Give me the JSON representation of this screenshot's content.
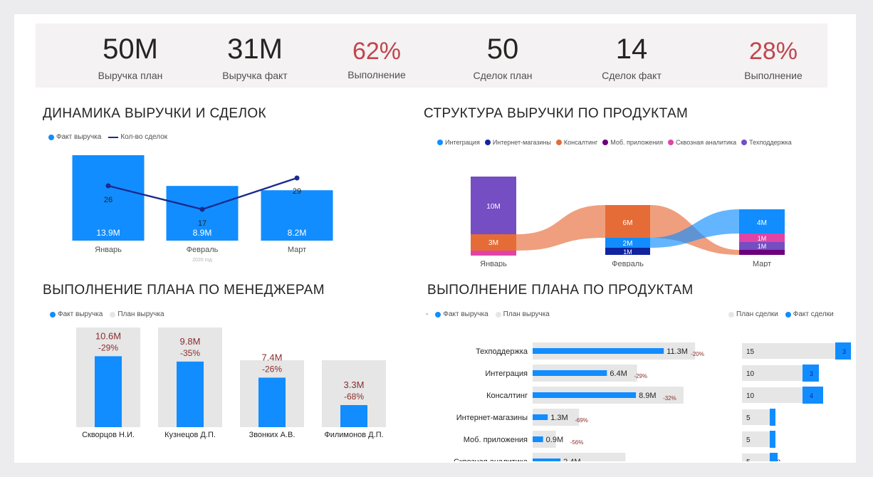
{
  "kpis": [
    {
      "value": "50M",
      "label": "Выручка план",
      "highlight": false
    },
    {
      "value": "31M",
      "label": "Выручка факт",
      "highlight": false
    },
    {
      "value": "62%",
      "label": "Выполнение",
      "highlight": true
    },
    {
      "value": "50",
      "label": "Сделок план",
      "highlight": false
    },
    {
      "value": "14",
      "label": "Сделок факт",
      "highlight": false
    },
    {
      "value": "28%",
      "label": "Выполнение",
      "highlight": true
    }
  ],
  "colors": {
    "blue": "#118dff",
    "navy": "#1b2b8f",
    "orange": "#e66c37",
    "purple": "#744ec2",
    "pink": "#e044a7",
    "darkblue": "#12239e",
    "darkpurple": "#6b007b",
    "red": "#c0454e",
    "grey": "#e6e6e6",
    "dark_red_text": "#8b2d2d"
  },
  "revenue_dynamics": {
    "title": "ДИНАМИКА ВЫРУЧКИ И СДЕЛОК",
    "legend": [
      "Факт выручка",
      "Кол-во сделок"
    ],
    "x_axis_caption": "2020 год",
    "chart_data": {
      "type": "bar",
      "categories": [
        "Январь",
        "Февраль",
        "Март"
      ],
      "series": [
        {
          "name": "Факт выручка",
          "values": [
            13.9,
            8.9,
            8.2
          ],
          "labels": [
            "13.9M",
            "8.9M",
            "8.2M"
          ]
        },
        {
          "name": "Кол-во сделок",
          "values": [
            26,
            17,
            29
          ]
        }
      ]
    }
  },
  "product_structure": {
    "title": "СТРУКТУРА ВЫРУЧКИ ПО ПРОДУКТАМ",
    "legend": [
      {
        "name": "Интеграция",
        "color": "#118dff"
      },
      {
        "name": "Интернет-магазины",
        "color": "#12239e"
      },
      {
        "name": "Консалтинг",
        "color": "#e66c37"
      },
      {
        "name": "Моб. приложения",
        "color": "#6b007b"
      },
      {
        "name": "Сквозная аналитика",
        "color": "#e044a7"
      },
      {
        "name": "Техподдержка",
        "color": "#744ec2"
      }
    ],
    "x_axis_caption": "2020 год",
    "chart_data": {
      "type": "bar",
      "categories": [
        "Январь",
        "Февраль",
        "Март"
      ],
      "segment_labels": {
        "Январь": [
          "10M",
          "3M"
        ],
        "Февраль": [
          "6M",
          "2M",
          "1M"
        ],
        "Март": [
          "4M",
          "1M",
          "1M"
        ]
      }
    }
  },
  "managers": {
    "title": "ВЫПОЛНЕНИЕ ПЛАНА ПО МЕНЕДЖЕРАМ",
    "legend": [
      "Факт выручка",
      "План выручка"
    ],
    "chart_data": {
      "type": "bar",
      "categories": [
        "Скворцов Н.И.",
        "Кузнецов Д.П.",
        "Звонких А.В.",
        "Филимонов Д.П."
      ],
      "series": [
        {
          "name": "Факт выручка",
          "values": [
            10.6,
            9.8,
            7.4,
            3.3
          ]
        },
        {
          "name": "План выручка",
          "values": [
            15,
            15,
            10,
            10
          ]
        }
      ],
      "value_labels": [
        "10.6M",
        "9.8M",
        "7.4M",
        "3.3M"
      ],
      "pct_labels": [
        "-29%",
        "-35%",
        "-26%",
        "-68%"
      ]
    }
  },
  "products": {
    "title": "ВЫПОЛНЕНИЕ ПЛАНА ПО ПРОДУКТАМ",
    "legend": [
      "Факт выручка",
      "План выручка"
    ],
    "legend_right": [
      "План сделки",
      "Факт сделки"
    ],
    "legend_dash": "-",
    "chart_data": {
      "type": "bar",
      "categories": [
        "Техподдержка",
        "Интеграция",
        "Консалтинг",
        "Интернет-магазины",
        "Моб. приложения",
        "Сквозная аналитика"
      ],
      "series": [
        {
          "name": "Факт выручка",
          "values": [
            11.3,
            6.4,
            8.9,
            1.3,
            0.9,
            2.4
          ]
        },
        {
          "name": "План выручка",
          "values": [
            14,
            9,
            13,
            4,
            2,
            8
          ]
        },
        {
          "name": "План сделки",
          "values": [
            15,
            10,
            10,
            5,
            5,
            5
          ]
        },
        {
          "name": "Факт сделки",
          "values": [
            3,
            3,
            4,
            0,
            0,
            2
          ]
        }
      ],
      "value_labels": [
        "11.3M",
        "6.4M",
        "8.9M",
        "1.3M",
        "0.9M",
        "2.4M"
      ],
      "pct_labels": [
        "-20%",
        "-29%",
        "-32%",
        "-69%",
        "-56%",
        "-70%"
      ],
      "deal_fact_labels": [
        "3",
        "3",
        "4",
        "",
        "",
        "2"
      ]
    }
  }
}
